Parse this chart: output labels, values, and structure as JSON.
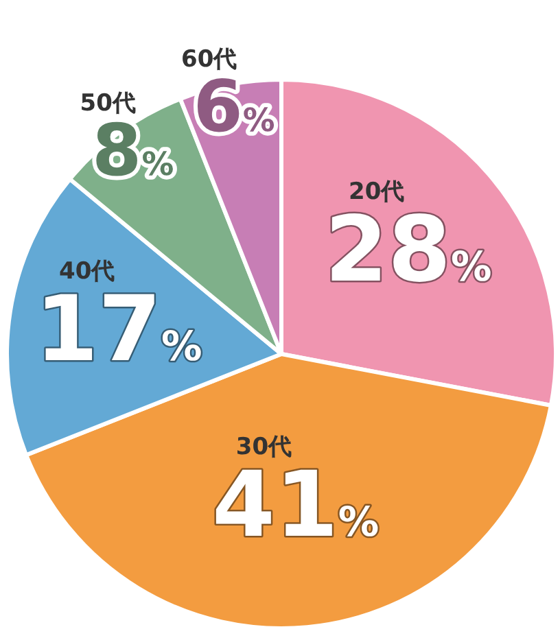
{
  "chart_data": {
    "type": "pie",
    "categories": [
      "20代",
      "30代",
      "40代",
      "50代",
      "60代"
    ],
    "values": [
      28,
      41,
      17,
      8,
      6
    ],
    "colors": [
      "#f095b0",
      "#f39c40",
      "#63a9d5",
      "#7fb08a",
      "#c77eb5"
    ],
    "value_labels": [
      "28%",
      "41%",
      "17%",
      "8%",
      "6%"
    ]
  }
}
